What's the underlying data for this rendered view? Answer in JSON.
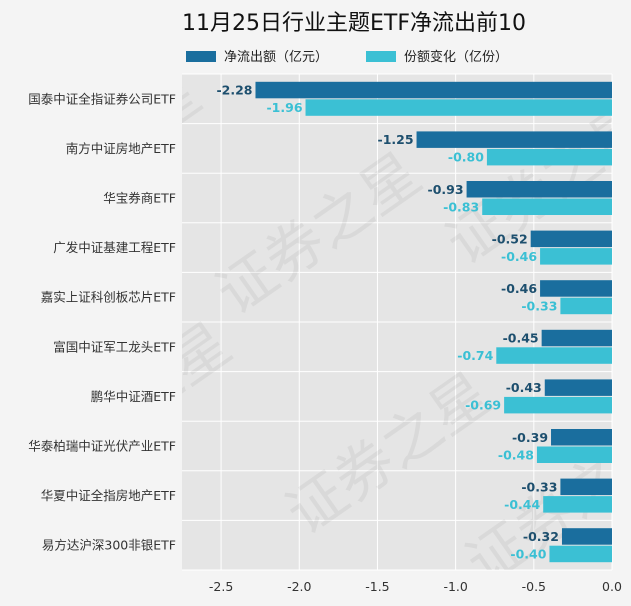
{
  "chart_data": {
    "type": "bar",
    "orientation": "horizontal",
    "title": "11月25日行业主题ETF净流出前10",
    "categories": [
      "国泰中证全指证券公司ETF",
      "南方中证房地产ETF",
      "华宝券商ETF",
      "广发中证基建工程ETF",
      "嘉实上证科创板芯片ETF",
      "富国中证军工龙头ETF",
      "鹏华中证酒ETF",
      "华泰柏瑞中证光伏产业ETF",
      "华夏中证全指房地产ETF",
      "易方达沪深300非银ETF"
    ],
    "series": [
      {
        "name": "净流出额（亿元）",
        "color": "#1a6e9e",
        "values": [
          -2.28,
          -1.25,
          -0.93,
          -0.52,
          -0.46,
          -0.45,
          -0.43,
          -0.39,
          -0.33,
          -0.32
        ],
        "labels": [
          "-2.28",
          "-1.25",
          "-0.93",
          "-0.52",
          "-0.46",
          "-0.45",
          "-0.43",
          "-0.39",
          "-0.33",
          "-0.32"
        ]
      },
      {
        "name": "份额变化（亿份）",
        "color": "#3bc0d4",
        "values": [
          -1.96,
          -0.8,
          -0.83,
          -0.46,
          -0.33,
          -0.74,
          -0.69,
          -0.48,
          -0.44,
          -0.4
        ],
        "labels": [
          "-1.96",
          "-0.80",
          "-0.83",
          "-0.46",
          "-0.33",
          "-0.74",
          "-0.69",
          "-0.48",
          "-0.44",
          "-0.40"
        ]
      }
    ],
    "xlim": [
      -2.75,
      0.0
    ],
    "xticks": [
      -2.5,
      -2.0,
      -1.5,
      -1.0,
      -0.5,
      0.0
    ],
    "xtick_labels": [
      "-2.5",
      "-2.0",
      "-1.5",
      "-1.0",
      "-0.5",
      "0.0"
    ],
    "xlabel": "",
    "ylabel": "",
    "grid": true,
    "legend_position": "top",
    "plot_background": "#e5e5e5",
    "watermark": "证券之星"
  }
}
